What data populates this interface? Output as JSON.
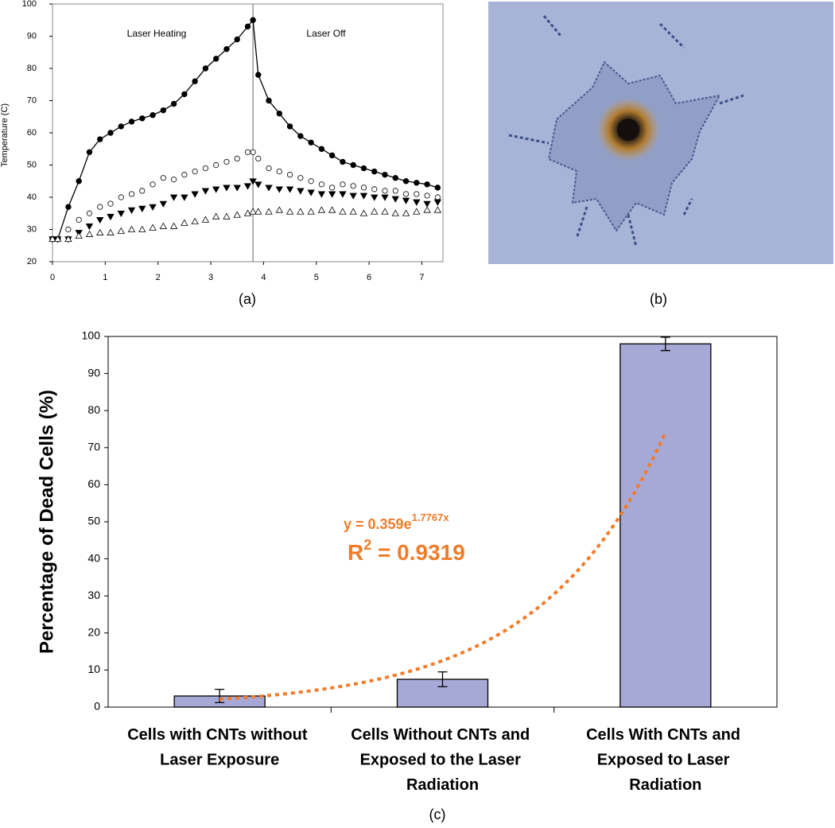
{
  "chart_data": [
    {
      "type": "line",
      "caption": "(a)",
      "ylabel": "Temperature (C)",
      "annotations": [
        "Laser Heating",
        "Laser Off"
      ],
      "vline": 3.8,
      "xlim": [
        0,
        7.4
      ],
      "xticks": [
        0,
        1,
        2,
        3,
        4,
        5,
        6,
        7
      ],
      "ylim": [
        20,
        100
      ],
      "yticks": [
        20,
        30,
        40,
        50,
        60,
        70,
        80,
        90,
        100
      ],
      "x": [
        0,
        0.1,
        0.3,
        0.5,
        0.7,
        0.9,
        1.1,
        1.3,
        1.5,
        1.7,
        1.9,
        2.1,
        2.3,
        2.5,
        2.7,
        2.9,
        3.1,
        3.3,
        3.5,
        3.7,
        3.8,
        3.9,
        4.1,
        4.3,
        4.5,
        4.7,
        4.9,
        5.1,
        5.3,
        5.5,
        5.7,
        5.9,
        6.1,
        6.3,
        6.5,
        6.7,
        6.9,
        7.1,
        7.3
      ],
      "series": [
        {
          "color": "#000000",
          "marker": "filled-circle",
          "line": true,
          "values": [
            27,
            27,
            37,
            45,
            54,
            58,
            60,
            62,
            63.5,
            64.5,
            65.5,
            67,
            69,
            72,
            76,
            80,
            83,
            86,
            89,
            93,
            95,
            78,
            70,
            66,
            62,
            59,
            57,
            55,
            53,
            51,
            50,
            49,
            48,
            47,
            46,
            45,
            44.5,
            44,
            43
          ]
        },
        {
          "color": "#000000",
          "marker": "open-circle",
          "line": false,
          "values": [
            27,
            27,
            30,
            33,
            35,
            37,
            38,
            40,
            41,
            42,
            44,
            46,
            45.5,
            47,
            48,
            49,
            50,
            51,
            52,
            54,
            54,
            52,
            49,
            48,
            47,
            46,
            45,
            44,
            43,
            44,
            43.5,
            43,
            42.5,
            42,
            42,
            41,
            41,
            40.5,
            40
          ]
        },
        {
          "color": "#000000",
          "marker": "filled-triangle-down",
          "line": false,
          "values": [
            27,
            27,
            27,
            29,
            31,
            33,
            34,
            35,
            36,
            36.5,
            37,
            38,
            40,
            40,
            41,
            42,
            42.5,
            43,
            43,
            43.5,
            45,
            44,
            43,
            42.5,
            42.5,
            42,
            41.5,
            41,
            41,
            41,
            40.5,
            40.5,
            40,
            40,
            39.5,
            39,
            38.5,
            38,
            38.5
          ]
        },
        {
          "color": "#000000",
          "marker": "open-triangle-up",
          "line": false,
          "values": [
            27,
            27,
            27,
            28,
            28.5,
            29,
            29,
            29.5,
            30,
            30,
            30.5,
            31,
            31,
            32,
            32.5,
            33,
            34,
            34,
            34.5,
            35,
            35.5,
            35.5,
            35.5,
            36,
            35.5,
            35.5,
            35.5,
            36,
            36,
            35.5,
            35.5,
            35,
            35.5,
            35.5,
            35,
            35,
            35.5,
            36,
            36
          ]
        }
      ]
    },
    {
      "type": "bar",
      "caption": "(c)",
      "ylabel": "Percentage of Dead Cells (%)",
      "categories": [
        "Cells with CNTs without Laser Exposure",
        "Cells Without CNTs and Exposed to the Laser Radiation",
        "Cells With CNTs and Exposed to Laser Radiation"
      ],
      "values": [
        3,
        7.5,
        98
      ],
      "errors": [
        1.8,
        2,
        1.8
      ],
      "color": "#a6a8d6",
      "ylim": [
        0,
        100
      ],
      "yticks": [
        0,
        10,
        20,
        30,
        40,
        50,
        60,
        70,
        80,
        90,
        100
      ],
      "trendline": {
        "type": "exponential",
        "a": 0.359,
        "b": 1.7767,
        "color": "#f07c2a",
        "equation": {
          "base": "y = 0.359e",
          "exponent": "1.7767x"
        },
        "r2": {
          "base": "R",
          "exponent": "2",
          "rest": " = 0.9319"
        }
      }
    }
  ],
  "image_panel": {
    "caption": "(b)"
  }
}
